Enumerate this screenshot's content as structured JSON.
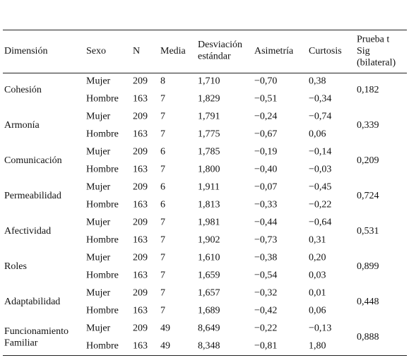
{
  "table": {
    "header": {
      "dimension": "Dimensión",
      "sex": "Sexo",
      "n": "N",
      "mean": "Media",
      "sd": [
        "Desviación",
        "estándar"
      ],
      "skewness": "Asimetría",
      "kurtosis": "Curtosis",
      "sig": [
        "Prueba t",
        "Sig",
        "(bilateral)"
      ]
    },
    "groups": [
      {
        "dimension": [
          "Cohesión"
        ],
        "sig": "0,182",
        "rows": [
          {
            "sex": "Mujer",
            "n": 209,
            "mean": 8,
            "sd": "1,710",
            "skewness": "−0,70",
            "kurtosis": "0,38"
          },
          {
            "sex": "Hombre",
            "n": 163,
            "mean": 7,
            "sd": "1,829",
            "skewness": "−0,51",
            "kurtosis": "−0,34"
          }
        ]
      },
      {
        "dimension": [
          "Armonía"
        ],
        "sig": "0,339",
        "rows": [
          {
            "sex": "Mujer",
            "n": 209,
            "mean": 7,
            "sd": "1,791",
            "skewness": "−0,24",
            "kurtosis": "−0,74"
          },
          {
            "sex": "Hombre",
            "n": 163,
            "mean": 7,
            "sd": "1,775",
            "skewness": "−0,67",
            "kurtosis": "0,06"
          }
        ]
      },
      {
        "dimension": [
          "Comunicación"
        ],
        "sig": "0,209",
        "rows": [
          {
            "sex": "Mujer",
            "n": 209,
            "mean": 6,
            "sd": "1,785",
            "skewness": "−0,19",
            "kurtosis": "−0,14"
          },
          {
            "sex": "Hombre",
            "n": 163,
            "mean": 7,
            "sd": "1,800",
            "skewness": "−0,40",
            "kurtosis": "−0,03"
          }
        ]
      },
      {
        "dimension": [
          "Permeabilidad"
        ],
        "sig": "0,724",
        "rows": [
          {
            "sex": "Mujer",
            "n": 209,
            "mean": 6,
            "sd": "1,911",
            "skewness": "−0,07",
            "kurtosis": "−0,45"
          },
          {
            "sex": "Hombre",
            "n": 163,
            "mean": 6,
            "sd": "1,813",
            "skewness": "−0,33",
            "kurtosis": "−0,22"
          }
        ]
      },
      {
        "dimension": [
          "Afectividad"
        ],
        "sig": "0,531",
        "rows": [
          {
            "sex": "Mujer",
            "n": 209,
            "mean": 7,
            "sd": "1,981",
            "skewness": "−0,44",
            "kurtosis": "−0,64"
          },
          {
            "sex": "Hombre",
            "n": 163,
            "mean": 7,
            "sd": "1,902",
            "skewness": "−0,73",
            "kurtosis": "0,31"
          }
        ]
      },
      {
        "dimension": [
          "Roles"
        ],
        "sig": "0,899",
        "rows": [
          {
            "sex": "Mujer",
            "n": 209,
            "mean": 7,
            "sd": "1,610",
            "skewness": "−0,38",
            "kurtosis": "0,20"
          },
          {
            "sex": "Hombre",
            "n": 163,
            "mean": 7,
            "sd": "1,659",
            "skewness": "−0,54",
            "kurtosis": "0,03"
          }
        ]
      },
      {
        "dimension": [
          "Adaptabilidad"
        ],
        "sig": "0,448",
        "rows": [
          {
            "sex": "Mujer",
            "n": 209,
            "mean": 7,
            "sd": "1,657",
            "skewness": "−0,32",
            "kurtosis": "0,01"
          },
          {
            "sex": "Hombre",
            "n": 163,
            "mean": 7,
            "sd": "1,689",
            "skewness": "−0,42",
            "kurtosis": "0,06"
          }
        ]
      },
      {
        "dimension": [
          "Funcionamiento",
          "Familiar"
        ],
        "sig": "0,888",
        "rows": [
          {
            "sex": "Mujer",
            "n": 209,
            "mean": 49,
            "sd": "8,649",
            "skewness": "−0,22",
            "kurtosis": "−0,13"
          },
          {
            "sex": "Hombre",
            "n": 163,
            "mean": 49,
            "sd": "8,348",
            "skewness": "−0,81",
            "kurtosis": "1,80"
          }
        ]
      }
    ]
  }
}
